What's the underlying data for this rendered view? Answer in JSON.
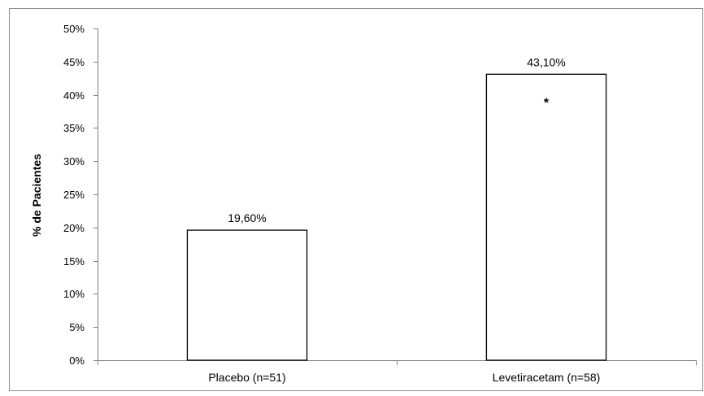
{
  "chart_data": {
    "type": "bar",
    "title": "",
    "xlabel": "",
    "ylabel": "% de Pacientes",
    "ylim": [
      0,
      50
    ],
    "y_ticks": [
      0,
      5,
      10,
      15,
      20,
      25,
      30,
      35,
      40,
      45,
      50
    ],
    "y_tick_labels": [
      "0%",
      "5%",
      "10%",
      "15%",
      "20%",
      "25%",
      "30%",
      "35%",
      "40%",
      "45%",
      "50%"
    ],
    "categories": [
      "Placebo (n=51)",
      "Levetiracetam (n=58)"
    ],
    "values": [
      19.6,
      43.1
    ],
    "data_labels": [
      "19,60%",
      "43,10%"
    ],
    "annotations": [
      {
        "category_index": 1,
        "text": "*"
      }
    ],
    "bar_fill": "#ffffff",
    "bar_stroke": "#000000",
    "grid": false,
    "legend": "none"
  }
}
